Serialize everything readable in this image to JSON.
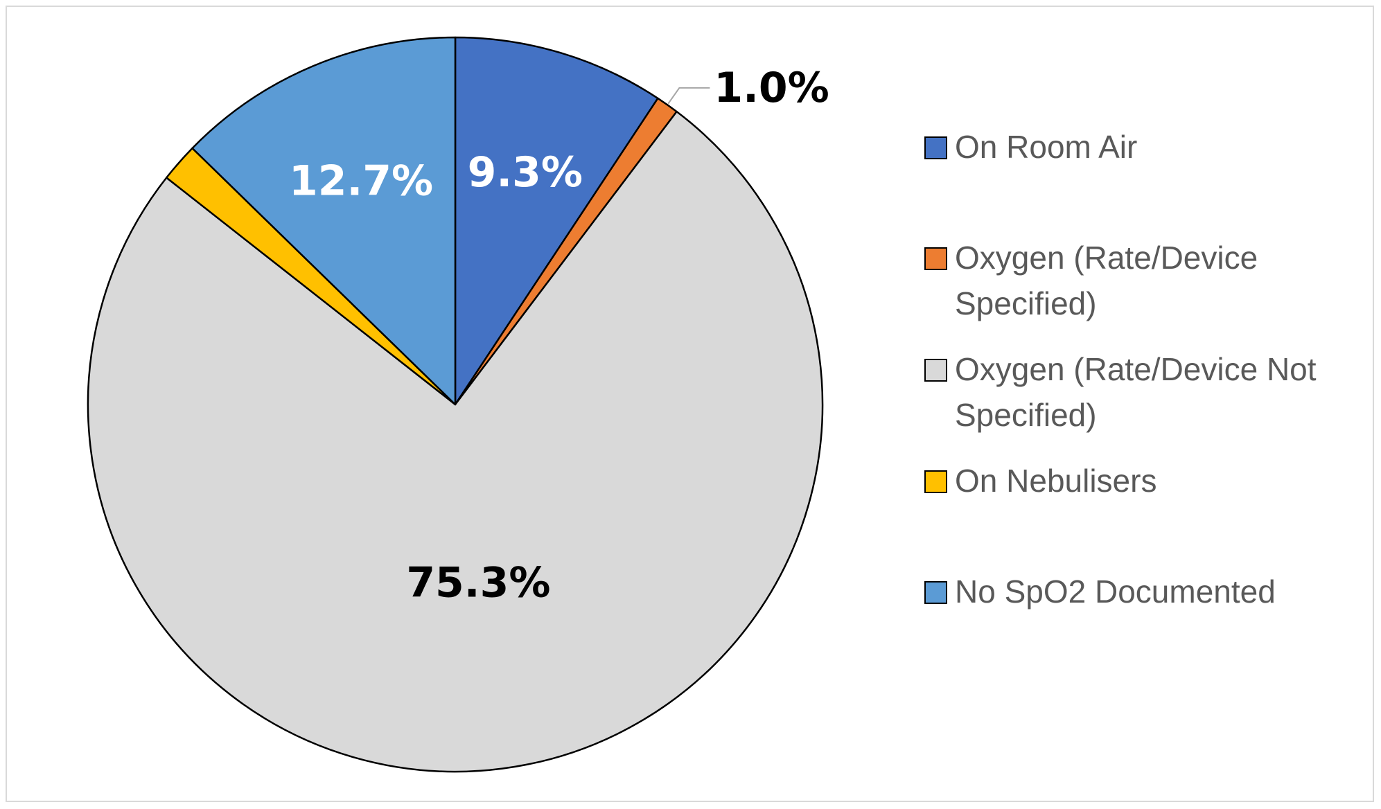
{
  "chart_data": {
    "type": "pie",
    "title": "",
    "slices": [
      {
        "label": "On Room Air",
        "value": 9.3,
        "display": "9.3%",
        "color": "#4472c4",
        "label_color": "#ffffff"
      },
      {
        "label": "Oxygen (Rate/Device Specified)",
        "value": 1.0,
        "display": "1.0%",
        "color": "#ed7d31",
        "label_color": "#000000"
      },
      {
        "label": "Oxygen (Rate/Device Not Specified)",
        "value": 75.3,
        "display": "75.3%",
        "color": "#d9d9d9",
        "label_color": "#000000"
      },
      {
        "label": "On Nebulisers",
        "value": 1.7,
        "display": "",
        "color": "#ffc000",
        "label_color": "#ffffff"
      },
      {
        "label": "No SpO2 Documented",
        "value": 12.7,
        "display": "12.7%",
        "color": "#5b9bd5",
        "label_color": "#ffffff"
      }
    ],
    "legend": {
      "position": "right",
      "entries": [
        [
          "On Room Air"
        ],
        [
          "Oxygen (Rate/Device",
          "Specified)"
        ],
        [
          "Oxygen (Rate/Device Not",
          "Specified)"
        ],
        [
          "On Nebulisers"
        ],
        [
          "No SpO2 Documented"
        ]
      ]
    }
  }
}
